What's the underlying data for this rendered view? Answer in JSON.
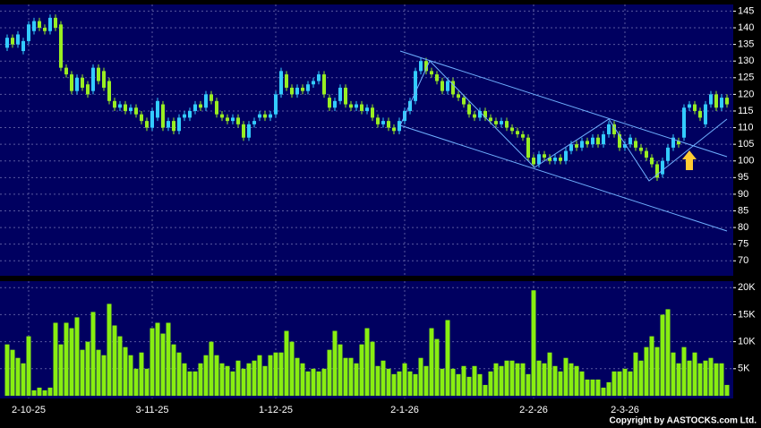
{
  "chart_data": [
    {
      "type": "candlestick",
      "categories": [
        null,
        null,
        null,
        null,
        "2-10-25",
        null,
        null,
        null,
        null,
        null,
        null,
        null,
        null,
        null,
        null,
        null,
        null,
        null,
        null,
        null,
        null,
        null,
        null,
        null,
        null,
        null,
        null,
        "3-11-25",
        null,
        null,
        null,
        null,
        null,
        null,
        null,
        null,
        null,
        null,
        null,
        null,
        null,
        null,
        null,
        null,
        null,
        null,
        null,
        null,
        null,
        null,
        "1-12-25",
        null,
        null,
        null,
        null,
        null,
        null,
        null,
        null,
        null,
        null,
        null,
        null,
        null,
        null,
        null,
        null,
        null,
        null,
        null,
        null,
        null,
        null,
        null,
        "2-1-26",
        null,
        null,
        null,
        null,
        null,
        null,
        null,
        null,
        null,
        null,
        null,
        null,
        null,
        null,
        null,
        null,
        null,
        null,
        null,
        null,
        null,
        null,
        null,
        "2-2-26",
        null,
        null,
        null,
        null,
        null,
        null,
        null,
        null,
        null,
        null,
        null,
        null,
        null,
        null,
        null,
        null,
        "2-3-26",
        null,
        null,
        null,
        null,
        null,
        null,
        null,
        null,
        null,
        null,
        null,
        null,
        null,
        null,
        null,
        null,
        null,
        null,
        null
      ],
      "open": [
        134,
        137,
        135,
        133,
        136,
        139,
        142,
        140,
        139,
        143,
        141,
        128,
        126,
        121,
        125,
        123,
        121,
        128,
        127,
        124,
        118,
        116,
        117,
        115,
        116,
        114,
        112,
        110,
        113,
        117,
        110,
        112,
        109,
        113,
        113,
        115,
        117,
        116,
        120,
        118,
        114,
        113,
        112,
        113,
        111,
        107,
        111,
        113,
        114,
        113,
        114,
        120,
        126,
        122,
        120,
        122,
        121,
        123,
        124,
        126,
        119,
        116,
        118,
        122,
        117,
        116,
        117,
        115,
        116,
        113,
        111,
        112,
        110,
        109,
        112,
        115,
        118,
        127,
        130,
        127,
        126,
        124,
        121,
        124,
        120,
        119,
        117,
        114,
        113,
        115,
        113,
        112,
        111,
        112,
        110,
        109,
        108,
        107,
        101,
        99,
        102,
        101,
        100,
        101,
        100,
        103,
        105,
        104,
        106,
        105,
        107,
        105,
        108,
        111,
        108,
        104,
        105,
        106,
        104,
        103,
        101,
        99,
        96,
        100,
        104,
        106,
        107,
        116,
        117,
        115,
        111,
        117,
        120,
        116,
        119
      ],
      "high": [
        138,
        138,
        139,
        137,
        142,
        143,
        143,
        141,
        144,
        144,
        142,
        129,
        127,
        126,
        126,
        124,
        129,
        129,
        128,
        125,
        119,
        118,
        118,
        117,
        117,
        115,
        113,
        116,
        119,
        118,
        113,
        113,
        114,
        115,
        116,
        118,
        118,
        121,
        121,
        119,
        115,
        114,
        114,
        114,
        112,
        112,
        113,
        115,
        115,
        115,
        121,
        128,
        127,
        123,
        123,
        123,
        124,
        125,
        127,
        127,
        120,
        119,
        123,
        123,
        118,
        118,
        118,
        117,
        117,
        114,
        113,
        113,
        111,
        113,
        116,
        119,
        128,
        131,
        131,
        128,
        127,
        125,
        125,
        125,
        121,
        120,
        118,
        115,
        116,
        116,
        114,
        113,
        113,
        113,
        111,
        110,
        109,
        108,
        102,
        103,
        103,
        102,
        102,
        102,
        104,
        106,
        106,
        107,
        107,
        108,
        108,
        109,
        112,
        112,
        109,
        106,
        108,
        107,
        105,
        104,
        102,
        100,
        101,
        105,
        108,
        107,
        117,
        118,
        118,
        116,
        118,
        121,
        121,
        120,
        120
      ],
      "low": [
        133,
        134,
        134,
        132,
        135,
        138,
        139,
        138,
        138,
        139,
        127,
        125,
        120,
        120,
        121,
        119,
        120,
        123,
        121,
        117,
        115,
        115,
        114,
        114,
        113,
        111,
        109,
        109,
        112,
        109,
        109,
        108,
        108,
        112,
        112,
        114,
        115,
        115,
        117,
        113,
        112,
        111,
        111,
        110,
        106,
        106,
        110,
        112,
        112,
        112,
        113,
        119,
        121,
        119,
        119,
        120,
        120,
        122,
        123,
        119,
        115,
        115,
        117,
        116,
        115,
        115,
        114,
        114,
        112,
        110,
        110,
        109,
        108,
        108,
        111,
        114,
        117,
        126,
        126,
        125,
        123,
        120,
        120,
        119,
        118,
        116,
        113,
        112,
        112,
        112,
        111,
        110,
        110,
        109,
        108,
        107,
        106,
        100,
        98,
        98,
        100,
        99,
        99,
        99,
        99,
        102,
        103,
        103,
        104,
        104,
        104,
        104,
        107,
        107,
        103,
        103,
        104,
        103,
        102,
        100,
        98,
        94,
        95,
        99,
        103,
        104,
        106,
        115,
        114,
        112,
        110,
        116,
        115,
        115,
        116
      ],
      "close": [
        137,
        135,
        138,
        136,
        141,
        142,
        140,
        139,
        143,
        140,
        128,
        126,
        121,
        125,
        122,
        120,
        128,
        124,
        122,
        118,
        116,
        117,
        115,
        116,
        114,
        112,
        110,
        115,
        118,
        110,
        112,
        109,
        113,
        114,
        115,
        117,
        116,
        120,
        118,
        114,
        113,
        112,
        113,
        111,
        107,
        111,
        112,
        114,
        113,
        114,
        120,
        127,
        122,
        120,
        122,
        121,
        123,
        124,
        126,
        120,
        116,
        118,
        122,
        117,
        116,
        117,
        115,
        116,
        113,
        111,
        112,
        110,
        109,
        112,
        115,
        118,
        127,
        130,
        127,
        126,
        124,
        121,
        124,
        120,
        119,
        117,
        114,
        113,
        115,
        113,
        112,
        111,
        112,
        110,
        109,
        108,
        107,
        101,
        99,
        102,
        101,
        100,
        101,
        100,
        103,
        105,
        104,
        106,
        105,
        107,
        105,
        108,
        111,
        108,
        104,
        105,
        107,
        104,
        103,
        101,
        99,
        95,
        100,
        104,
        107,
        105,
        116,
        117,
        115,
        113,
        117,
        120,
        116,
        119,
        117
      ],
      "up_color": "#33ccff",
      "down_color": "#99ee22",
      "ylim": [
        65.5,
        147
      ],
      "yticks": [
        70,
        75,
        80,
        85,
        90,
        95,
        100,
        105,
        110,
        115,
        120,
        125,
        130,
        135,
        140,
        145
      ],
      "grid": true
    },
    {
      "type": "bar",
      "values": [
        9500,
        8500,
        7000,
        6000,
        11000,
        1000,
        1500,
        1000,
        1500,
        13500,
        9500,
        13500,
        12500,
        14500,
        8500,
        10000,
        15500,
        8500,
        7500,
        17000,
        13000,
        11000,
        9000,
        7500,
        5000,
        8000,
        5000,
        12500,
        13500,
        11500,
        13500,
        9500,
        8000,
        6000,
        4500,
        4500,
        6000,
        7500,
        10000,
        7500,
        6000,
        5500,
        4500,
        6500,
        5000,
        6000,
        6500,
        7500,
        5500,
        7500,
        8000,
        8000,
        12000,
        10000,
        7000,
        6000,
        4500,
        5000,
        4500,
        5000,
        8500,
        12000,
        9500,
        7000,
        7000,
        6000,
        9500,
        12500,
        10000,
        5500,
        6500,
        5000,
        4000,
        4500,
        6000,
        4500,
        4000,
        7000,
        5500,
        12500,
        10500,
        5000,
        14000,
        5000,
        4000,
        5500,
        3500,
        5500,
        4000,
        2000,
        4500,
        6000,
        5500,
        6500,
        6500,
        6000,
        6000,
        4000,
        19500,
        6500,
        6000,
        8000,
        5500,
        4500,
        7000,
        6000,
        5500,
        4500,
        3000,
        3000,
        3000,
        1500,
        2500,
        4500,
        4500,
        5000,
        4500,
        8000,
        6500,
        9000,
        11000,
        9000,
        15000,
        16000,
        8000,
        6000,
        9000,
        6500,
        8000,
        6000,
        6500,
        7000,
        6000,
        6000,
        2000
      ],
      "color": "#88ee11",
      "ylim": [
        -500,
        21200
      ],
      "yticks": [
        {
          "value": 5000,
          "label": "5K"
        },
        {
          "value": 10000,
          "label": "10K"
        },
        {
          "value": 15000,
          "label": "15K"
        },
        {
          "value": 20000,
          "label": "20K"
        }
      ],
      "grid": true
    }
  ],
  "footer": "Copyright by AASTOCKS.com Ltd."
}
